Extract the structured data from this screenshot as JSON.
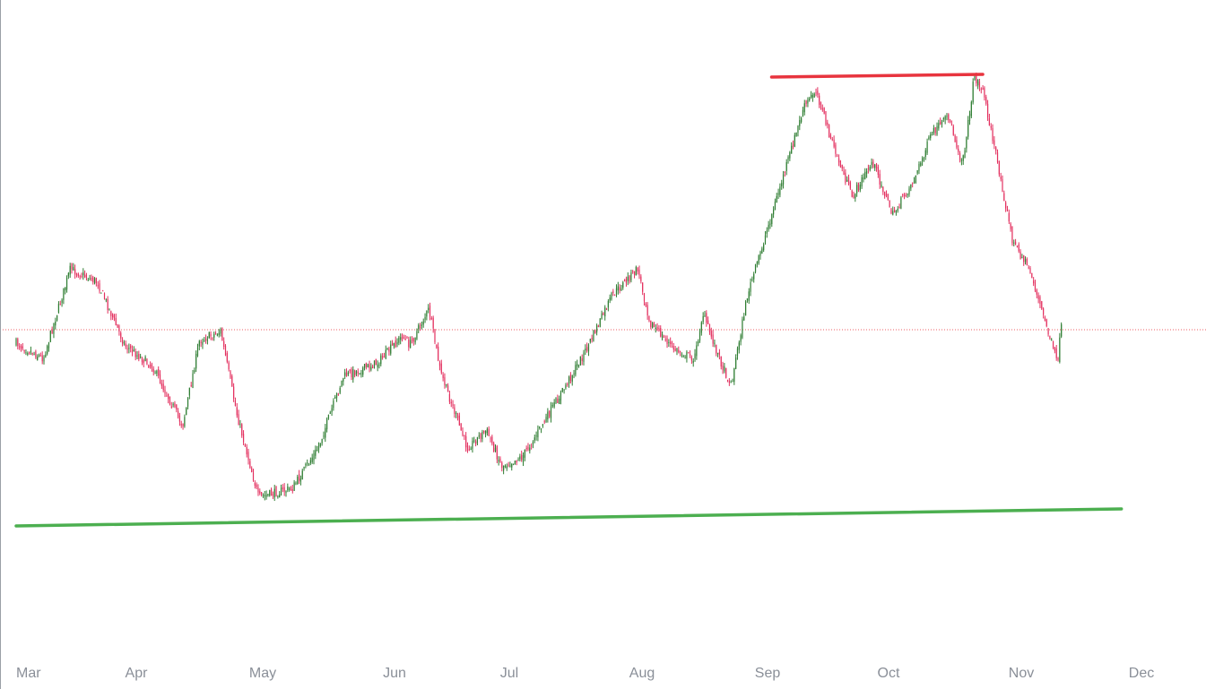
{
  "chart_data": {
    "type": "candlestick",
    "title": "",
    "xlabel": "",
    "ylabel": "",
    "x_axis": {
      "tick_labels": [
        "Mar",
        "Apr",
        "May",
        "Jun",
        "Jul",
        "Aug",
        "Sep",
        "Oct",
        "Nov",
        "Dec"
      ]
    },
    "grid": false,
    "colors": {
      "up": "#2e7d32",
      "down": "#e3305f",
      "resistance": "#e8343e",
      "support": "#4caf50",
      "reference": "#e8343e",
      "axis_text": "#8a8f98"
    },
    "series": [
      {
        "type": "close_path",
        "points": [
          [
            "Mar 1",
            383
          ],
          [
            "Mar 8",
            400
          ],
          [
            "Mar 15",
            300
          ],
          [
            "Mar 22",
            315
          ],
          [
            "Mar 29",
            385
          ],
          [
            "Apr 5",
            410
          ],
          [
            "Apr 12",
            475
          ],
          [
            "Apr 16",
            380
          ],
          [
            "Apr 21",
            370
          ],
          [
            "Apr 25",
            465
          ],
          [
            "Apr 30",
            555
          ],
          [
            "May 8",
            545
          ],
          [
            "May 14",
            500
          ],
          [
            "May 20",
            420
          ],
          [
            "May 28",
            405
          ],
          [
            "Jun 3",
            375
          ],
          [
            "Jun 5",
            385
          ],
          [
            "Jun 10",
            345
          ],
          [
            "Jun 13",
            415
          ],
          [
            "Jun 20",
            500
          ],
          [
            "Jun 25",
            480
          ],
          [
            "Jun 29",
            520
          ],
          [
            "Jul 4",
            510
          ],
          [
            "Jul 8",
            480
          ],
          [
            "Jul 13",
            440
          ],
          [
            "Jul 19",
            390
          ],
          [
            "Jul 25",
            330
          ],
          [
            "Jul 31",
            300
          ],
          [
            "Aug 3",
            360
          ],
          [
            "Aug 9",
            390
          ],
          [
            "Aug 14",
            400
          ],
          [
            "Aug 16",
            350
          ],
          [
            "Aug 21",
            410
          ],
          [
            "Aug 23",
            430
          ],
          [
            "Aug 27",
            330
          ],
          [
            "Sep 1",
            255
          ],
          [
            "Sep 6",
            180
          ],
          [
            "Sep 10",
            120
          ],
          [
            "Sep 13",
            100
          ],
          [
            "Sep 17",
            160
          ],
          [
            "Sep 22",
            220
          ],
          [
            "Sep 27",
            180
          ],
          [
            "Oct 2",
            240
          ],
          [
            "Oct 7",
            200
          ],
          [
            "Oct 11",
            150
          ],
          [
            "Oct 15",
            130
          ],
          [
            "Oct 18",
            180
          ],
          [
            "Oct 19",
            160
          ],
          [
            "Oct 21",
            85
          ],
          [
            "Oct 23",
            100
          ],
          [
            "Oct 27",
            195
          ],
          [
            "Oct 30",
            270
          ],
          [
            "Nov 3",
            300
          ],
          [
            "Nov 6",
            345
          ],
          [
            "Nov 8",
            375
          ],
          [
            "Nov 10",
            405
          ],
          [
            "Nov 11",
            365
          ]
        ]
      }
    ],
    "annotations": [
      {
        "type": "resistance_line",
        "start": [
          "Sep 2",
          86
        ],
        "end": [
          "Oct 23",
          83
        ]
      },
      {
        "type": "support_line",
        "start": [
          "Mar 1",
          587
        ],
        "end": [
          "Nov 26",
          568
        ]
      },
      {
        "type": "reference_line",
        "style": "dotted",
        "y": 368
      }
    ],
    "candles": {
      "count": 640,
      "wick_range": 5,
      "body_range": 3
    }
  }
}
